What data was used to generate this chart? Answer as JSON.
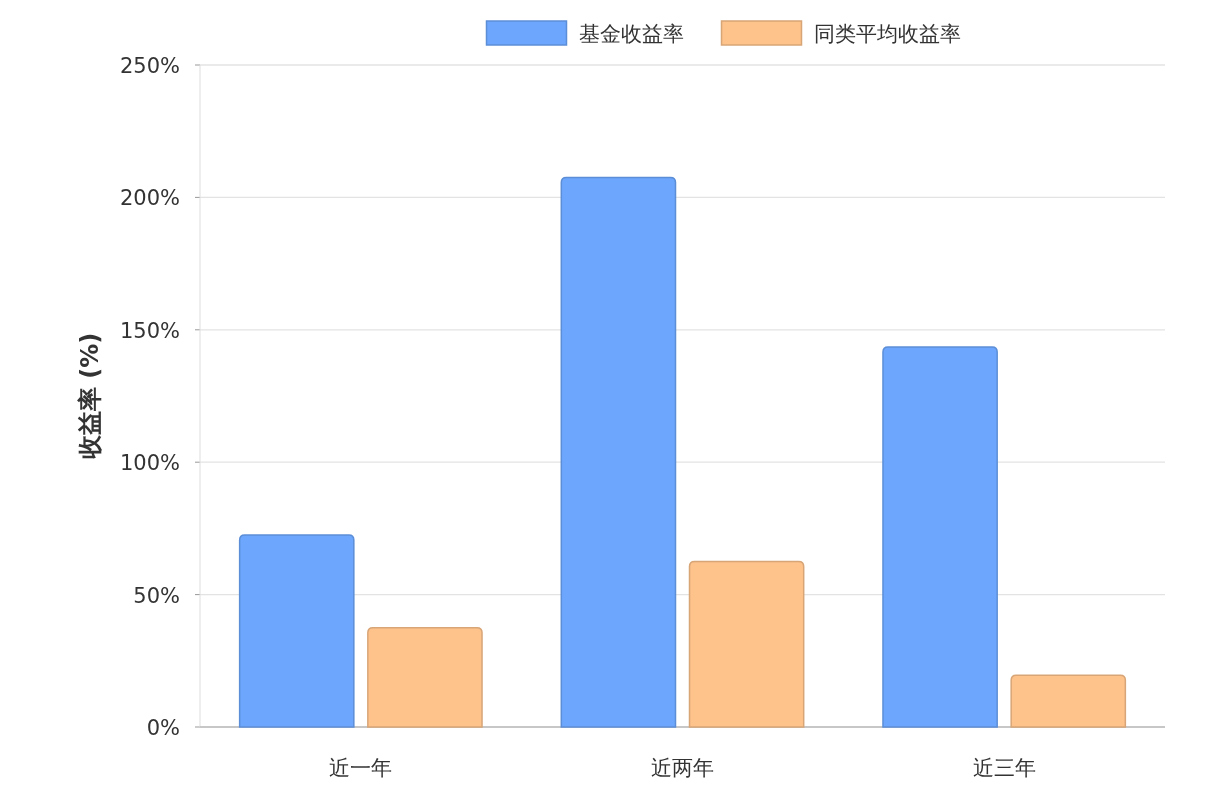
{
  "chart_data": {
    "type": "bar",
    "ylabel": "收益率 (%)",
    "categories": [
      "近一年",
      "近两年",
      "近三年"
    ],
    "series": [
      {
        "name": "基金收益率",
        "color": "#6ca7fd",
        "values": [
          72.5,
          207.5,
          143.5
        ]
      },
      {
        "name": "同类平均收益率",
        "color": "#fec28b",
        "values": [
          37.5,
          62.5,
          19.5
        ]
      }
    ],
    "ylim": [
      0,
      250
    ],
    "yticks": [
      {
        "value": 0,
        "label": "0%"
      },
      {
        "value": 50,
        "label": "50%"
      },
      {
        "value": 100,
        "label": "100%"
      },
      {
        "value": 150,
        "label": "150%"
      },
      {
        "value": 200,
        "label": "200%"
      },
      {
        "value": 250,
        "label": "250%"
      }
    ],
    "grid": "y",
    "legend": "top"
  }
}
